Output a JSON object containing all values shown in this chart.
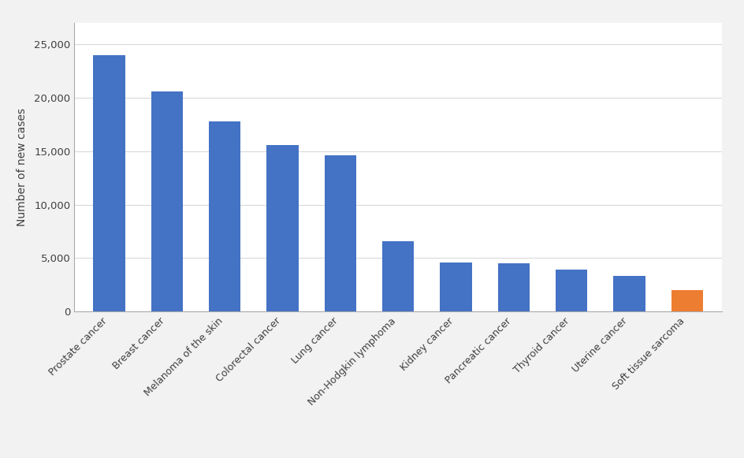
{
  "categories": [
    "Prostate cancer",
    "Breast cancer",
    "Melanoma of the skin",
    "Colorectal cancer",
    "Lung cancer",
    "Non-Hodgkin lymphoma",
    "Kidney cancer",
    "Pancreatic cancer",
    "Thyroid cancer",
    "Uterine cancer",
    "Soft tissue sarcoma"
  ],
  "values": [
    24000,
    20600,
    17800,
    15600,
    14600,
    6600,
    4550,
    4500,
    3900,
    3300,
    2000
  ],
  "bar_colors": [
    "#4472C4",
    "#4472C4",
    "#4472C4",
    "#4472C4",
    "#4472C4",
    "#4472C4",
    "#4472C4",
    "#4472C4",
    "#4472C4",
    "#4472C4",
    "#ED7D31"
  ],
  "ylabel": "Number of new cases",
  "ylim": [
    0,
    27000
  ],
  "yticks": [
    0,
    5000,
    10000,
    15000,
    20000,
    25000
  ],
  "background_color": "#F2F2F2",
  "plot_bg_color": "#FFFFFF",
  "inner_bg_color": "#FFFFFF",
  "grid_color": "#D9D9D9",
  "bar_width": 0.55,
  "ylabel_fontsize": 10,
  "tick_fontsize": 9.5,
  "xtick_fontsize": 9
}
